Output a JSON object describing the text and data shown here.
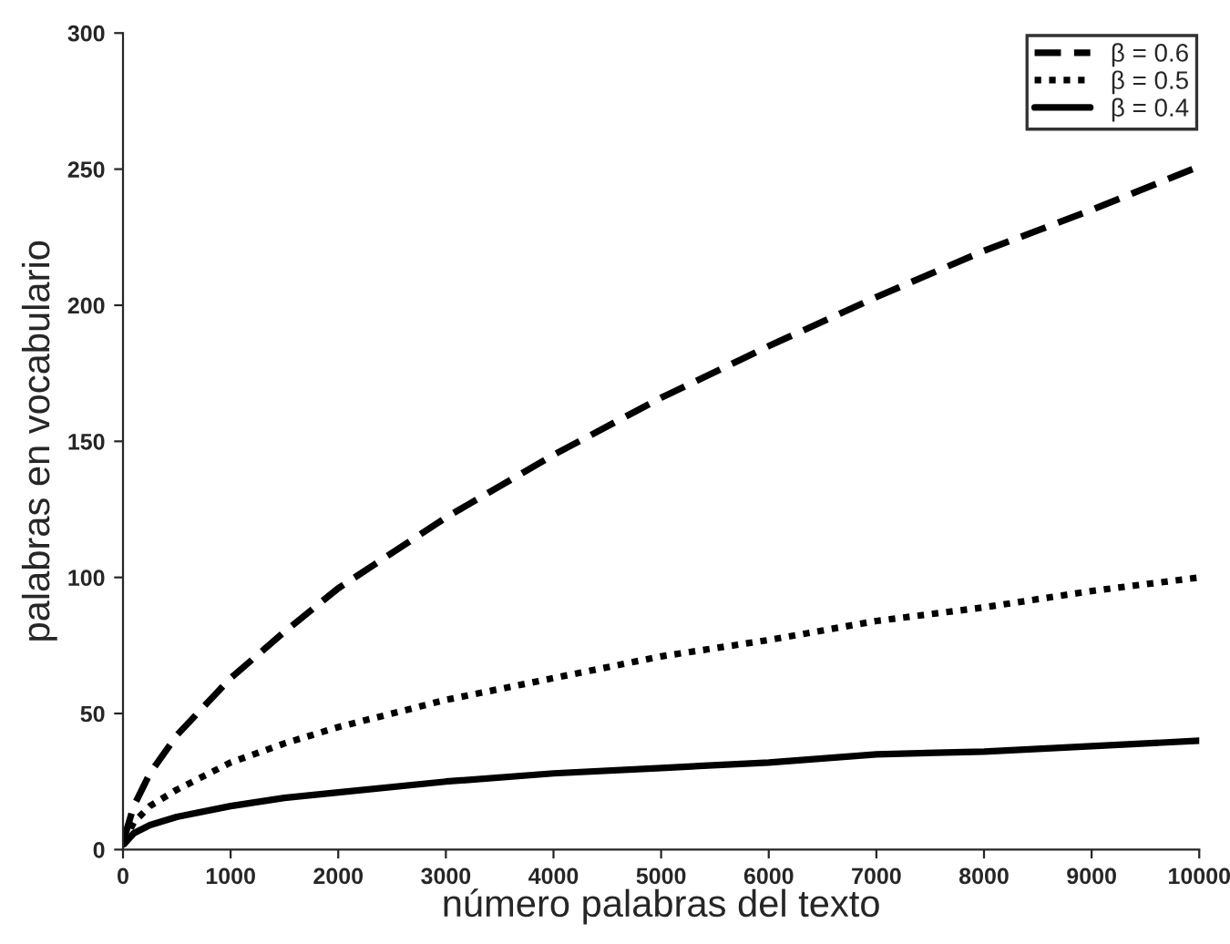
{
  "chart_data": {
    "type": "line",
    "xlabel": "número palabras del texto",
    "ylabel": "palabras en vocabulario",
    "x": [
      10,
      100,
      250,
      500,
      1000,
      1500,
      2000,
      3000,
      4000,
      5000,
      6000,
      7000,
      8000,
      9000,
      10000
    ],
    "series": [
      {
        "name": "β = 0.6",
        "color": "#000000",
        "line_style": "dashed",
        "values": [
          4,
          16,
          28,
          42,
          63,
          80,
          96,
          122,
          145,
          166,
          185,
          203,
          220,
          235,
          251
        ]
      },
      {
        "name": "β = 0.5",
        "color": "#000000",
        "line_style": "dotted",
        "values": [
          3,
          10,
          16,
          22,
          32,
          39,
          45,
          55,
          63,
          71,
          77,
          84,
          89,
          95,
          100
        ]
      },
      {
        "name": "β = 0.4",
        "color": "#000000",
        "line_style": "solid",
        "values": [
          2,
          6,
          9,
          12,
          16,
          19,
          21,
          25,
          28,
          30,
          32,
          35,
          36,
          38,
          40
        ]
      }
    ],
    "xlim": [
      0,
      10000
    ],
    "xticks": [
      0,
      1000,
      2000,
      3000,
      4000,
      5000,
      6000,
      7000,
      8000,
      9000,
      10000
    ],
    "ylim": [
      0,
      300
    ],
    "yticks": [
      0,
      50,
      100,
      150,
      200,
      250,
      300
    ],
    "grid": false,
    "legend": "top right",
    "marker": "none"
  }
}
